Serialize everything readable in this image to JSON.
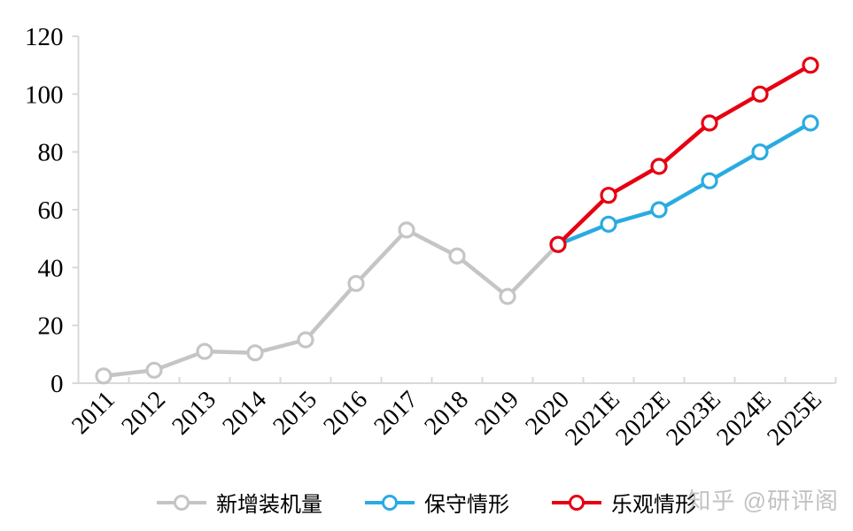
{
  "chart_data": {
    "type": "line",
    "title": "",
    "xlabel": "",
    "ylabel": "",
    "categories": [
      "2011",
      "2012",
      "2013",
      "2014",
      "2015",
      "2016",
      "2017",
      "2018",
      "2019",
      "2020",
      "2021E",
      "2022E",
      "2023E",
      "2024E",
      "2025E"
    ],
    "ylim": [
      0,
      120
    ],
    "yticks": [
      0,
      20,
      40,
      60,
      80,
      100,
      120
    ],
    "grid": false,
    "legend_position": "bottom",
    "axis_color": "#d9d9d9",
    "text_color": "#000000",
    "marker_style": "open-circle",
    "series": [
      {
        "name": "新增装机量",
        "color": "#c5c5c5",
        "start_index": 0,
        "values": [
          2.5,
          4.5,
          11,
          10.5,
          15,
          34.5,
          53,
          44,
          30,
          48
        ]
      },
      {
        "name": "保守情形",
        "color": "#29abe2",
        "start_index": 9,
        "values": [
          48,
          55,
          60,
          70,
          80,
          90
        ]
      },
      {
        "name": "乐观情形",
        "color": "#e60012",
        "start_index": 9,
        "values": [
          48,
          65,
          75,
          90,
          100,
          110
        ]
      }
    ]
  },
  "watermark": {
    "text": "知乎 @研评阁",
    "color": "#a9a9a9"
  }
}
